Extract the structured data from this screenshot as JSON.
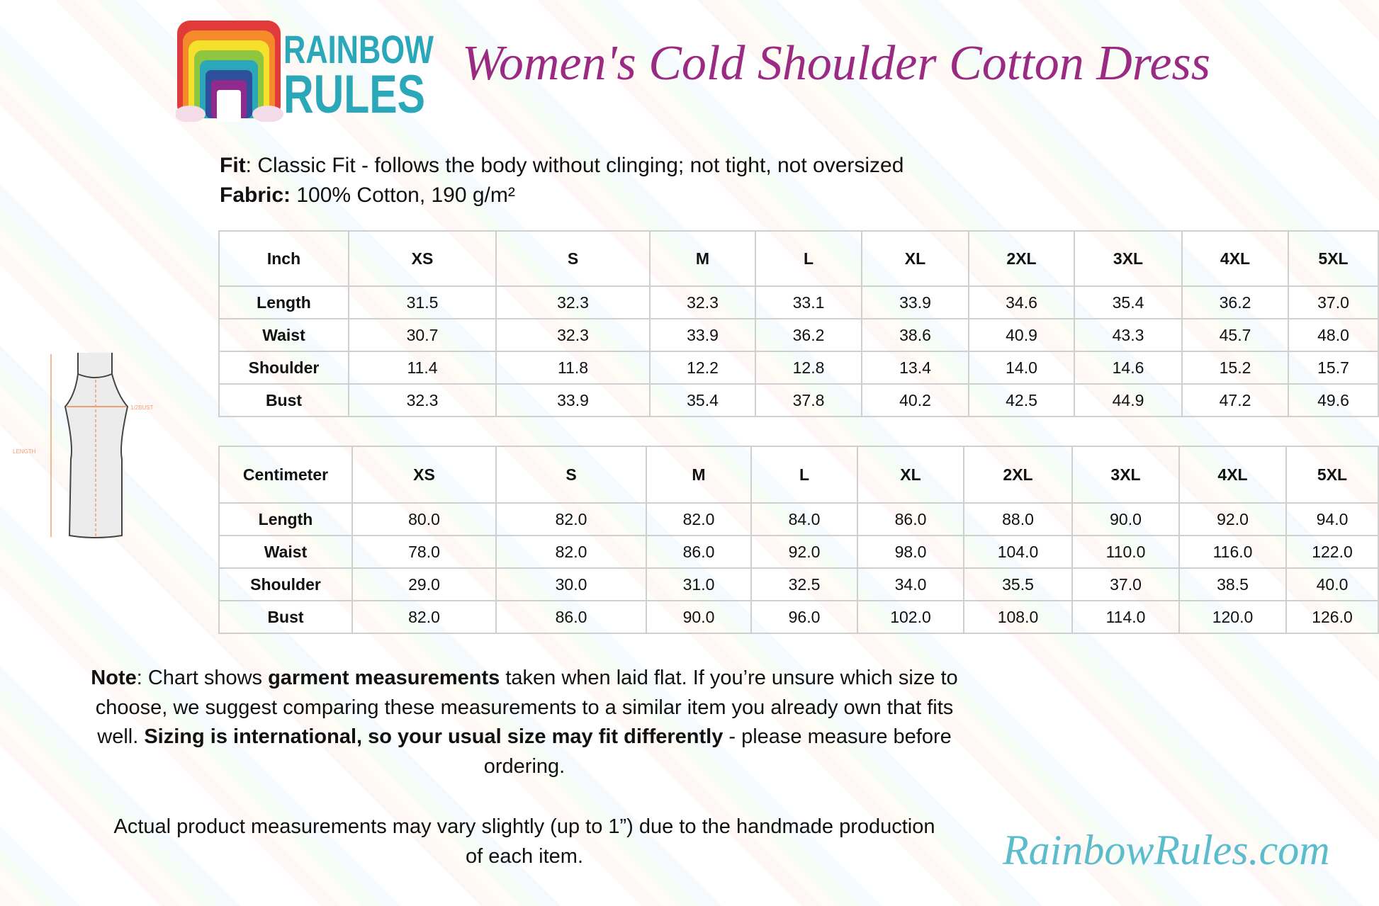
{
  "logo": {
    "text": "RAINBOW RULES"
  },
  "title": "Women's Cold Shoulder Cotton Dress",
  "fit": {
    "label": "Fit",
    "text": ": Classic Fit - follows the body without clinging; not tight, not oversized"
  },
  "fabric": {
    "label": "Fabric:",
    "text": " 100% Cotton, 190 g/m²"
  },
  "inch_table": {
    "headers": [
      "Inch",
      "XS",
      "S",
      "M",
      "L",
      "XL",
      "2XL",
      "3XL",
      "4XL",
      "5XL"
    ],
    "rows": [
      [
        "Length",
        "31.5",
        "32.3",
        "32.3",
        "33.1",
        "33.9",
        "34.6",
        "35.4",
        "36.2",
        "37.0"
      ],
      [
        "Waist",
        "30.7",
        "32.3",
        "33.9",
        "36.2",
        "38.6",
        "40.9",
        "43.3",
        "45.7",
        "48.0"
      ],
      [
        "Shoulder",
        "11.4",
        "11.8",
        "12.2",
        "12.8",
        "13.4",
        "14.0",
        "14.6",
        "15.2",
        "15.7"
      ],
      [
        "Bust",
        "32.3",
        "33.9",
        "35.4",
        "37.8",
        "40.2",
        "42.5",
        "44.9",
        "47.2",
        "49.6"
      ]
    ]
  },
  "cm_table": {
    "headers": [
      "Centimeter",
      "XS",
      "S",
      "M",
      "L",
      "XL",
      "2XL",
      "3XL",
      "4XL",
      "5XL"
    ],
    "rows": [
      [
        "Length",
        "80.0",
        "82.0",
        "82.0",
        "84.0",
        "86.0",
        "88.0",
        "90.0",
        "92.0",
        "94.0"
      ],
      [
        "Waist",
        "78.0",
        "82.0",
        "86.0",
        "92.0",
        "98.0",
        "104.0",
        "110.0",
        "116.0",
        "122.0"
      ],
      [
        "Shoulder",
        "29.0",
        "30.0",
        "31.0",
        "32.5",
        "34.0",
        "35.5",
        "37.0",
        "38.5",
        "40.0"
      ],
      [
        "Bust",
        "82.0",
        "86.0",
        "90.0",
        "96.0",
        "102.0",
        "108.0",
        "114.0",
        "120.0",
        "126.0"
      ]
    ]
  },
  "diagram": {
    "bust_label": "1/2BUST",
    "length_label": "LENGTH"
  },
  "note": {
    "p1_bold1": "Note",
    "p1_t1": ": Chart shows ",
    "p1_bold2": "garment measurements",
    "p1_t2": " taken when laid flat. If you’re unsure which size to choose, we suggest comparing these measurements to a similar item you already own that fits well. ",
    "p1_bold3": "Sizing is international, so your usual size may fit differently",
    "p1_t3": " - please measure before ordering.",
    "p2": "Actual product measurements may vary slightly (up to 1”) due to the handmade production of each item."
  },
  "brand_url": "RainbowRules.com",
  "colors": {
    "title": "#9a2a82",
    "brand": "#5bbccc",
    "logo_text": "#2aa7b8"
  }
}
